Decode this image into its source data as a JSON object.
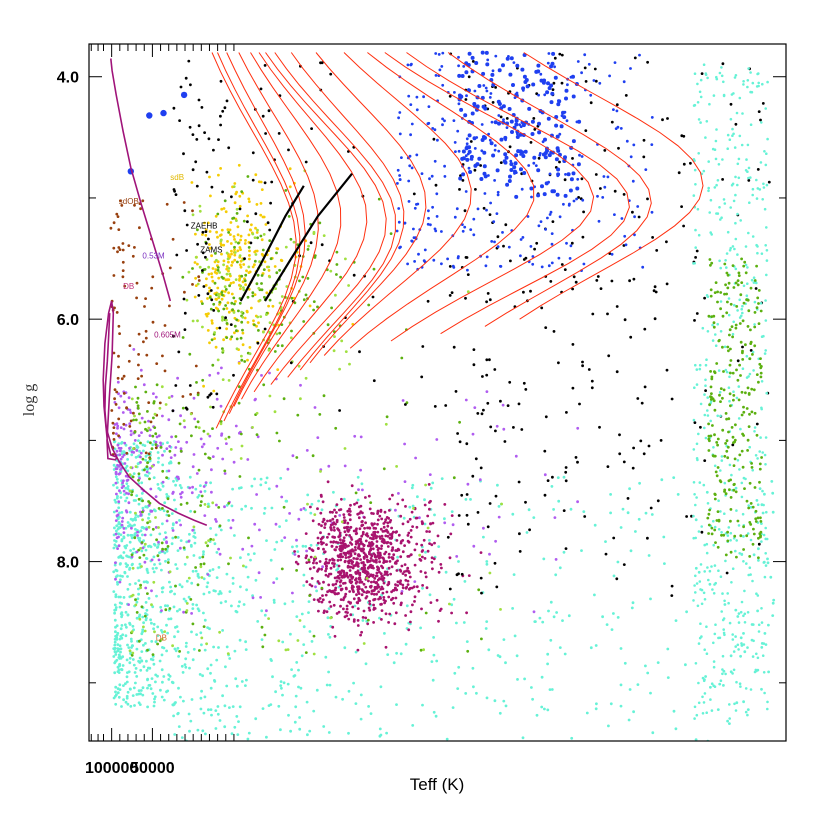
{
  "chart_data": {
    "type": "scatter",
    "title": "",
    "xlabel": "Teff (K)",
    "ylabel": "log g",
    "x_scale": "reciprocal",
    "xlim": [
      225000,
      5700
    ],
    "ylim": [
      3.73,
      9.48
    ],
    "grid": false,
    "y_inverted": true,
    "x_ticks": [
      {
        "value": 100000,
        "label": "100000"
      },
      {
        "value": 50000,
        "label": "50000"
      }
    ],
    "x_minor_ticks": [
      200000,
      150000,
      125000,
      83333,
      71429,
      62500,
      55556,
      45455,
      41667,
      38462,
      35714,
      33333,
      31250,
      29412,
      27778,
      26316,
      25000
    ],
    "y_ticks": [
      {
        "value": 4.0,
        "label": "4.0"
      },
      {
        "value": 6.0,
        "label": "6.0"
      },
      {
        "value": 8.0,
        "label": "8.0"
      }
    ],
    "y_minor_ticks": [
      5.0,
      7.0,
      9.0
    ],
    "colors": {
      "cyan": "#66f2d6",
      "violet": "#b05cf0",
      "magenta": "#a8136e",
      "brown": "#98400f",
      "gold": "#f5cc05",
      "green": "#5cb010",
      "lime": "#a0e040",
      "blue": "#1f3ff0",
      "black": "#000000",
      "track_purple": "#a0147a",
      "track_red": "#ff3010"
    },
    "annotations": [
      {
        "text": "sdOB",
        "x": 85000,
        "y": 5.05,
        "color": "#98400f"
      },
      {
        "text": "DB",
        "x": 78000,
        "y": 5.75,
        "color": "#c0307a"
      },
      {
        "text": "0.53M",
        "x": 57000,
        "y": 5.5,
        "color": "#7a2fc0"
      },
      {
        "text": "0.605M",
        "x": 49000,
        "y": 6.15,
        "color": "#a0147a"
      },
      {
        "text": "sdB",
        "x": 41000,
        "y": 4.85,
        "color": "#e0b800"
      },
      {
        "text": "ZAEHB",
        "x": 34000,
        "y": 5.25,
        "color": "#000000"
      },
      {
        "text": "ZAMS",
        "x": 31500,
        "y": 5.45,
        "color": "#000000"
      },
      {
        "text": "DB",
        "x": 48000,
        "y": 8.65,
        "color": "#d06a30"
      }
    ],
    "series": [
      {
        "color_key": "cyan",
        "density": 1200,
        "region": "wd"
      },
      {
        "color_key": "violet",
        "density": 320,
        "region": "wd_upper"
      },
      {
        "color_key": "magenta",
        "density": 900,
        "region": "wd_cluster"
      },
      {
        "color_key": "brown",
        "density": 110,
        "region": "sd"
      },
      {
        "color_key": "gold",
        "density": 260,
        "region": "sdb"
      },
      {
        "color_key": "green",
        "density": 320,
        "region": "mix"
      },
      {
        "color_key": "lime",
        "density": 220,
        "region": "mix"
      },
      {
        "color_key": "black",
        "density": 420,
        "region": "cool"
      },
      {
        "color_key": "blue",
        "density": 300,
        "region": "ms"
      }
    ],
    "tracks": {
      "track_053": [
        [
          41000,
          5.85
        ],
        [
          44000,
          5.65
        ],
        [
          50000,
          5.35
        ],
        [
          58000,
          5.05
        ],
        [
          68000,
          4.75
        ],
        [
          78000,
          4.45
        ],
        [
          90000,
          4.15
        ],
        [
          99000,
          3.95
        ],
        [
          102000,
          3.85
        ]
      ],
      "track_0605": [
        [
          30000,
          7.7
        ],
        [
          33000,
          7.66
        ],
        [
          38000,
          7.6
        ],
        [
          46000,
          7.52
        ],
        [
          55000,
          7.42
        ],
        [
          70000,
          7.3
        ],
        [
          85000,
          7.17
        ],
        [
          98000,
          7.07
        ],
        [
          115000,
          6.9
        ],
        [
          120000,
          6.75
        ],
        [
          118000,
          6.55
        ],
        [
          112000,
          6.35
        ],
        [
          108000,
          6.15
        ],
        [
          105000,
          5.95
        ]
      ],
      "loop_a": [
        [
          88000,
          7.14
        ],
        [
          102000,
          7.12
        ],
        [
          112000,
          7.0
        ],
        [
          123000,
          6.72
        ],
        [
          126000,
          6.5
        ],
        [
          120000,
          6.2
        ],
        [
          108000,
          5.95
        ],
        [
          100000,
          5.85
        ],
        [
          96000,
          5.95
        ],
        [
          99000,
          6.3
        ],
        [
          106000,
          6.65
        ],
        [
          113000,
          7.0
        ],
        [
          110000,
          7.15
        ],
        [
          92000,
          7.16
        ]
      ]
    }
  }
}
